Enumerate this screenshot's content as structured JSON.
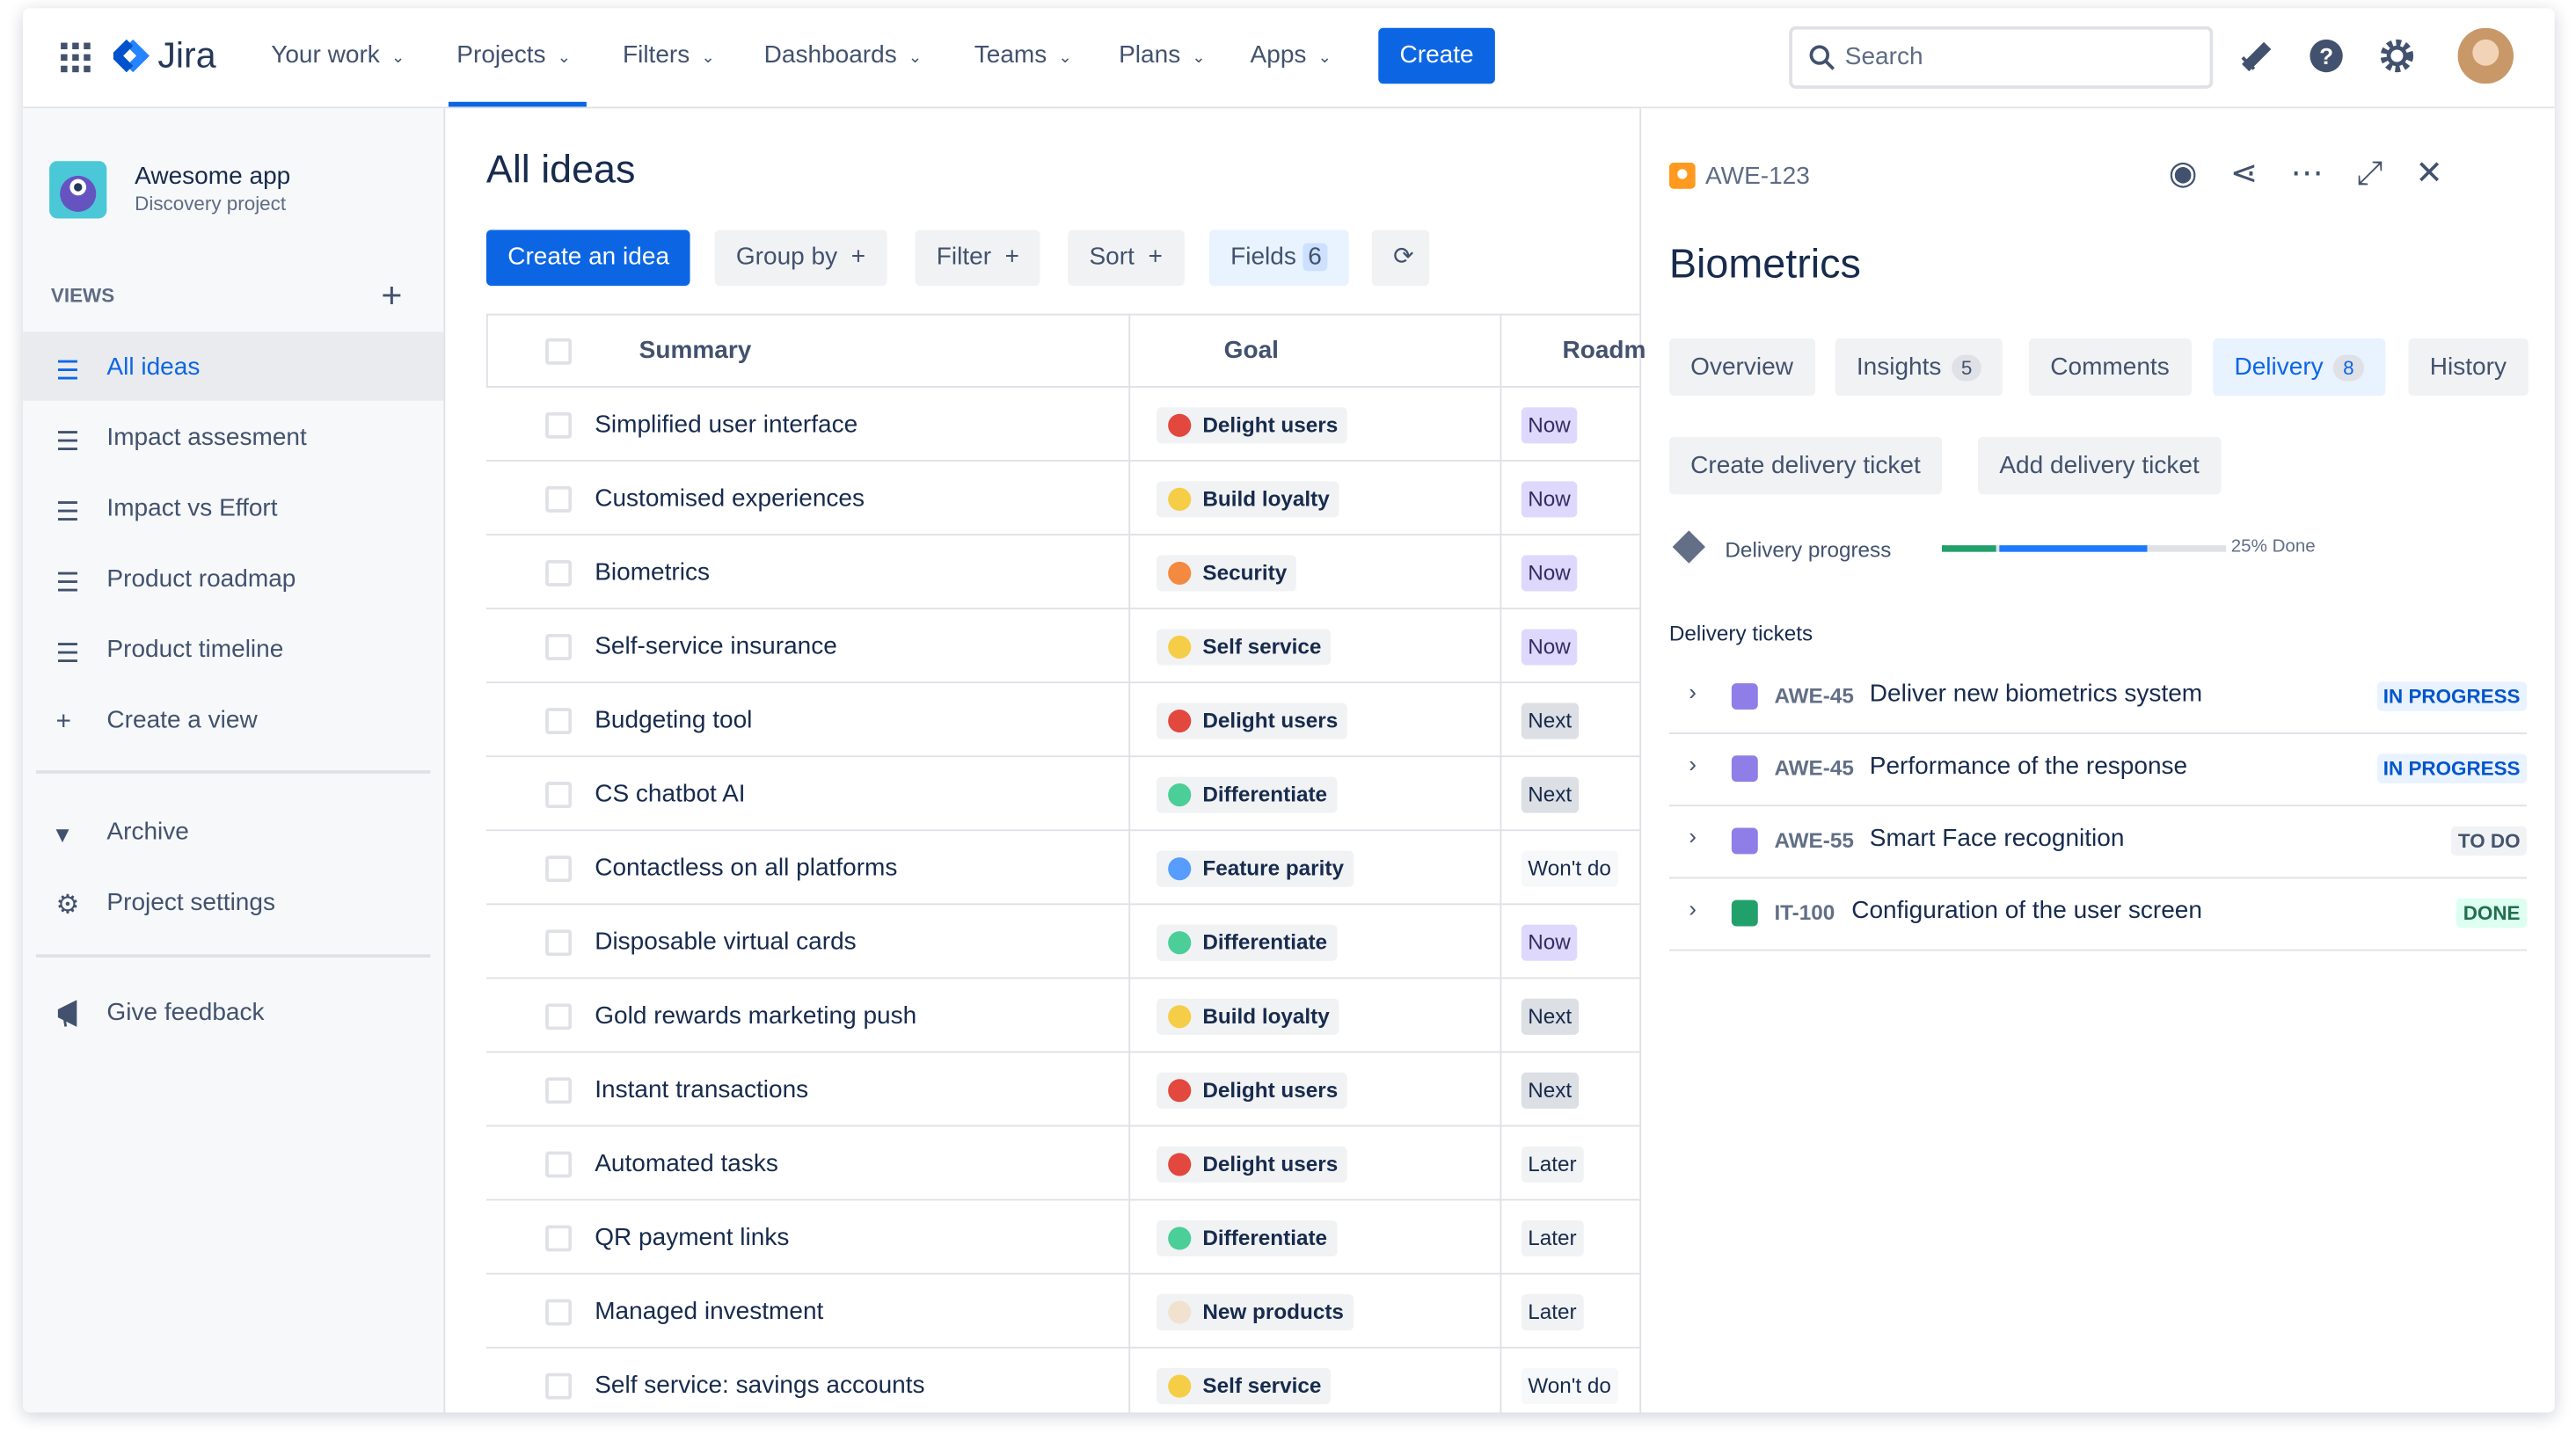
{
  "nav": {
    "product": "Jira",
    "items": [
      "Your work",
      "Projects",
      "Filters",
      "Dashboards",
      "Teams",
      "Plans",
      "Apps"
    ],
    "create": "Create",
    "search": "Search"
  },
  "project": {
    "name": "Awesome app",
    "type": "Discovery project"
  },
  "sidebar": {
    "views_label": "VIEWS",
    "views": [
      "All ideas",
      "Impact assesment",
      "Impact vs Effort",
      "Product roadmap",
      "Product timeline",
      "Create a view"
    ],
    "footer": [
      "Archive",
      "Project settings"
    ],
    "feedback": "Give feedback"
  },
  "main": {
    "title": "All ideas",
    "toolbar": {
      "create": "Create an idea",
      "group": "Group by",
      "filter": "Filter",
      "sort": "Sort",
      "fields": "Fields",
      "fields_count": 6
    },
    "table": {
      "columns": [
        "Summary",
        "Goal",
        "Roadm"
      ],
      "rows": [
        [
          "Simplified user interface",
          "Delight users",
          "Now"
        ],
        [
          "Customised experiences",
          "Build loyalty",
          "Now"
        ],
        [
          "Biometrics",
          "Security",
          "Now"
        ],
        [
          "Self-service insurance",
          "Self service",
          "Now"
        ],
        [
          "Budgeting tool",
          "Delight users",
          "Next"
        ],
        [
          "CS chatbot AI",
          "Differentiate",
          "Next"
        ],
        [
          "Contactless on all platforms",
          "Feature parity",
          "Won't do"
        ],
        [
          "Disposable virtual cards",
          "Differentiate",
          "Now"
        ],
        [
          "Gold rewards marketing push",
          "Build loyalty",
          "Next"
        ],
        [
          "Instant transactions",
          "Delight users",
          "Next"
        ],
        [
          "Automated tasks",
          "Delight users",
          "Later"
        ],
        [
          "QR payment links",
          "Differentiate",
          "Later"
        ],
        [
          "Managed investment",
          "New products",
          "Later"
        ],
        [
          "Self service: savings accounts",
          "Self service",
          "Won't do"
        ]
      ]
    }
  },
  "panel": {
    "key": "AWE-123",
    "title": "Biometrics",
    "tabs": [
      {
        "label": "Overview"
      },
      {
        "label": "Insights",
        "count": 5
      },
      {
        "label": "Comments"
      },
      {
        "label": "Delivery",
        "count": 8
      },
      {
        "label": "History"
      }
    ],
    "actions": [
      "Create delivery ticket",
      "Add delivery ticket"
    ],
    "progress_label": "Delivery progress",
    "progress_text": "25% Done",
    "tickets_label": "Delivery tickets",
    "tickets": [
      {
        "key": "AWE-45",
        "summary": "Deliver new biometrics system",
        "status": "IN PROGRESS"
      },
      {
        "key": "AWE-45",
        "summary": "Performance of the response",
        "status": "IN PROGRESS"
      },
      {
        "key": "AWE-55",
        "summary": "Smart Face recognition",
        "status": "TO DO"
      },
      {
        "key": "IT-100",
        "summary": "Configuration of the user screen",
        "status": "DONE"
      }
    ]
  }
}
